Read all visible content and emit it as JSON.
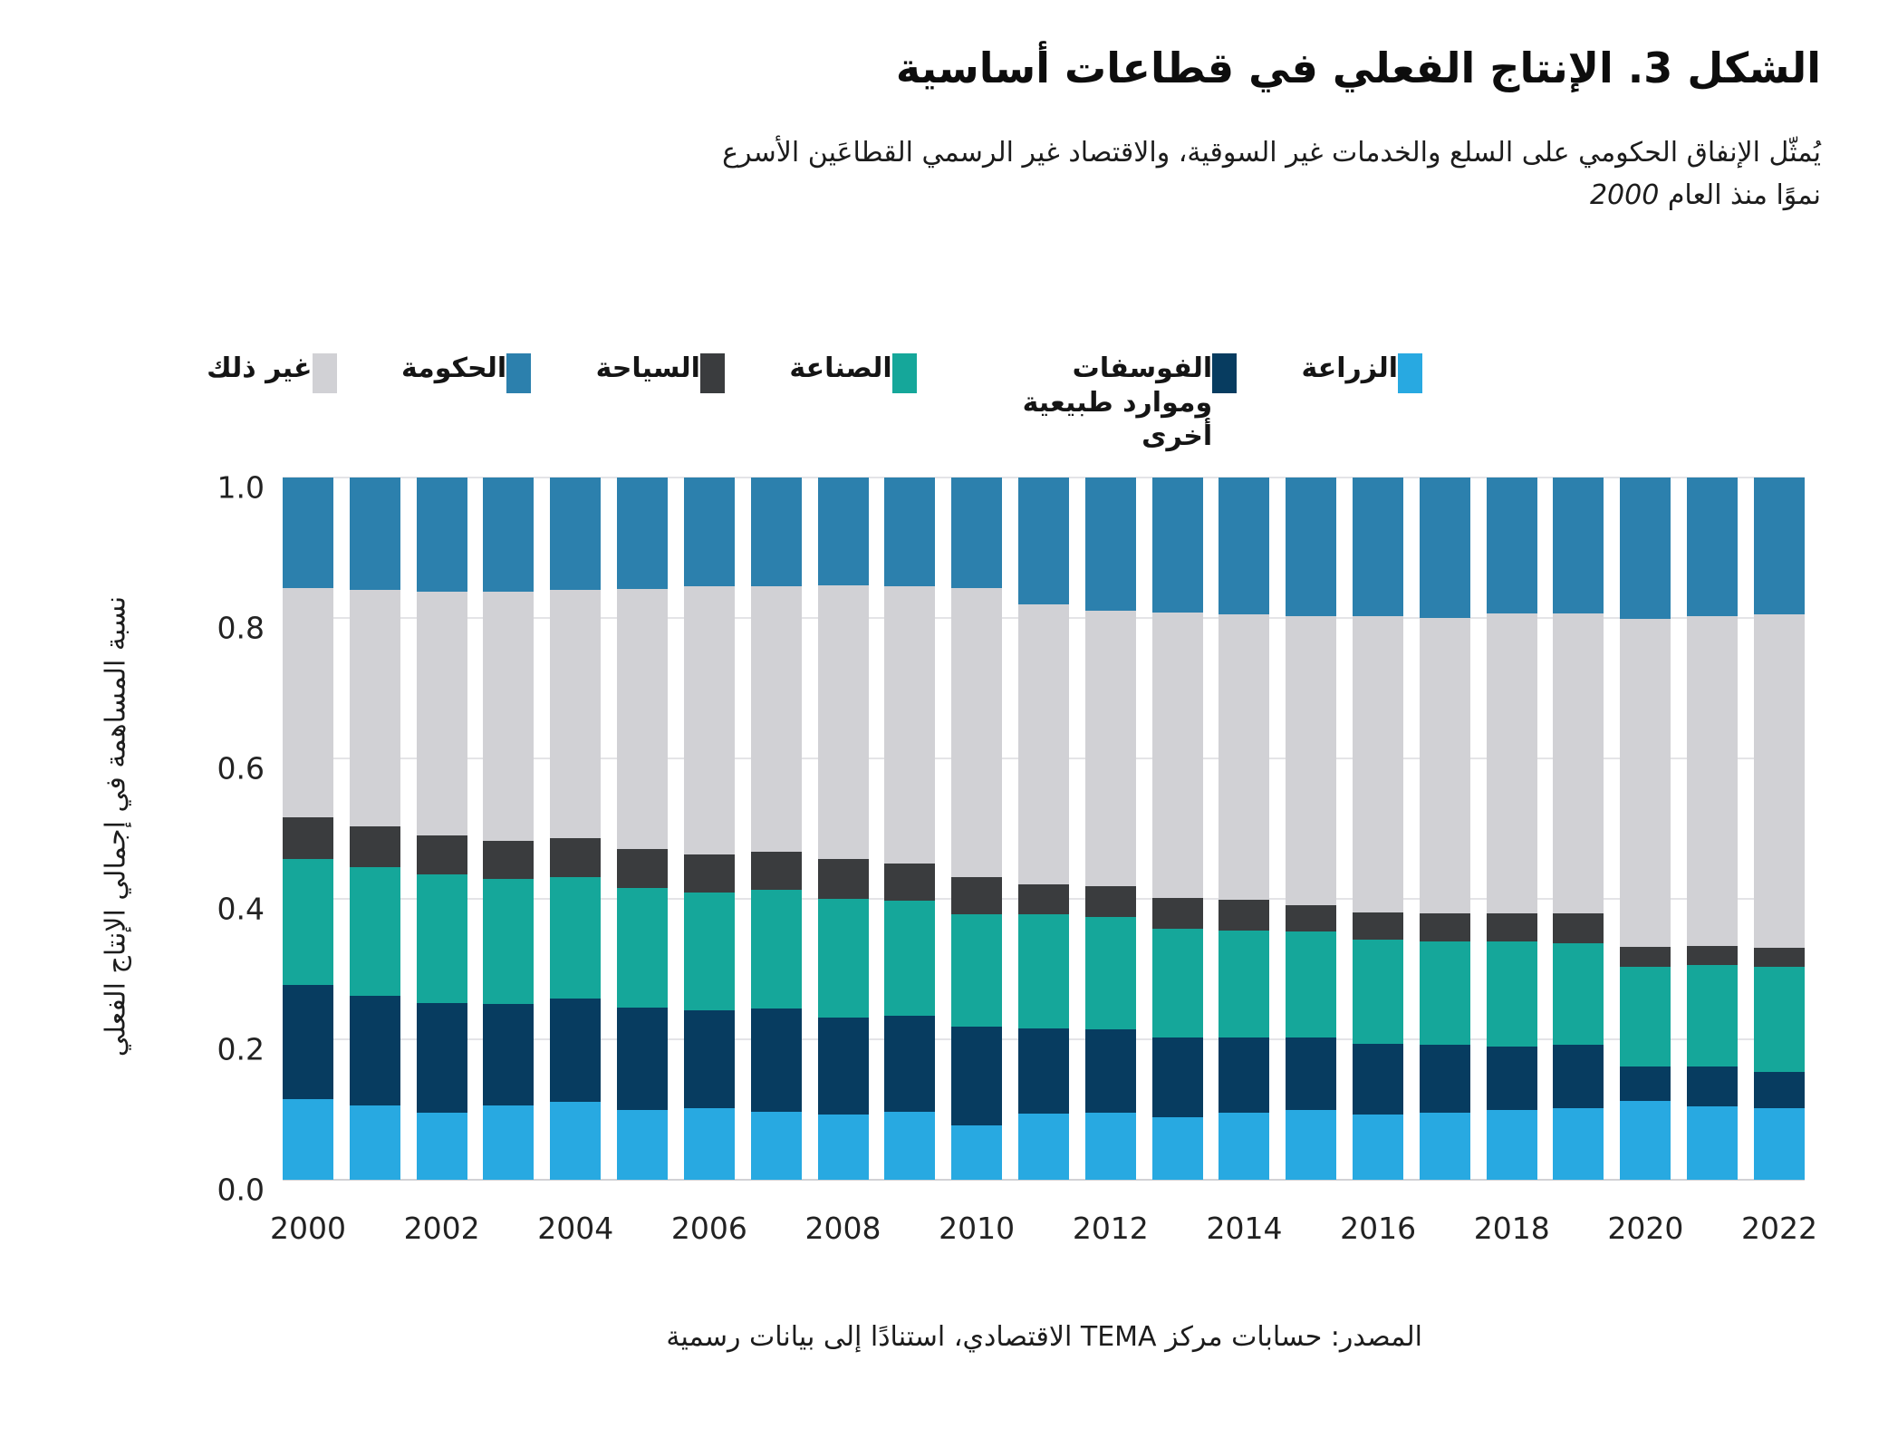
{
  "title": "الشكل 3. الإنتاج الفعلي في قطاعات أساسية",
  "subtitle": {
    "line1": "يُمثّل الإنفاق الحكومي على السلع والخدمات غير السوقية، والاقتصاد غير الرسمي القطاعَين الأسرع",
    "line2_prefix": "نموًا منذ العام",
    "year": "2000"
  },
  "source": "المصدر: حسابات مركز TEMA الاقتصادي، استنادًا إلى بيانات رسمية",
  "y_axis": {
    "label": "نسبة المساهمة في إجمالي الإنتاج الفعلي",
    "ticks": [
      "1.0",
      "0.8",
      "0.6",
      "0.4",
      "0.2",
      "0.0"
    ]
  },
  "x_axis": {
    "tick_years": [
      "2000",
      "2002",
      "2004",
      "2006",
      "2008",
      "2010",
      "2012",
      "2014",
      "2016",
      "2018",
      "2020",
      "2022"
    ]
  },
  "legend": {
    "items": [
      {
        "key": "agriculture",
        "label": "الزراعة",
        "color": "#28a9e1"
      },
      {
        "key": "phosphates",
        "label": "الفوسفات وموارد طبيعية أخرى",
        "color": "#073c60"
      },
      {
        "key": "industry",
        "label": "الصناعة",
        "color": "#15a79a"
      },
      {
        "key": "tourism",
        "label": "السياحة",
        "color": "#3a3c3e"
      },
      {
        "key": "government",
        "label": "الحكومة",
        "color": "#2c80ad"
      },
      {
        "key": "other",
        "label": "غير ذلك",
        "color": "#d1d1d5"
      }
    ]
  },
  "chart_data": {
    "type": "bar",
    "stacked": true,
    "normalized": true,
    "title": "الشكل 3. الإنتاج الفعلي في قطاعات أساسية",
    "xlabel": "",
    "ylabel": "نسبة المساهمة في إجمالي الإنتاج الفعلي",
    "ylim": [
      0,
      1
    ],
    "grid": true,
    "legend_position": "top",
    "x": [
      2000,
      2001,
      2002,
      2003,
      2004,
      2005,
      2006,
      2007,
      2008,
      2009,
      2010,
      2011,
      2012,
      2013,
      2014,
      2015,
      2016,
      2017,
      2018,
      2019,
      2020,
      2021,
      2022
    ],
    "series": [
      {
        "key": "agriculture",
        "name": "الزراعة",
        "color": "#28a9e1",
        "values": [
          0.115,
          0.106,
          0.095,
          0.106,
          0.111,
          0.099,
          0.102,
          0.097,
          0.093,
          0.097,
          0.077,
          0.094,
          0.095,
          0.089,
          0.095,
          0.099,
          0.093,
          0.095,
          0.099,
          0.102,
          0.112,
          0.105,
          0.102
        ]
      },
      {
        "key": "phosphates",
        "name": "الفوسفات وموارد طبيعية أخرى",
        "color": "#073c60",
        "values": [
          0.163,
          0.156,
          0.157,
          0.144,
          0.147,
          0.146,
          0.139,
          0.147,
          0.138,
          0.137,
          0.141,
          0.121,
          0.119,
          0.114,
          0.108,
          0.104,
          0.101,
          0.097,
          0.091,
          0.09,
          0.049,
          0.056,
          0.052
        ]
      },
      {
        "key": "industry",
        "name": "الصناعة",
        "color": "#15a79a",
        "values": [
          0.179,
          0.183,
          0.183,
          0.178,
          0.173,
          0.17,
          0.168,
          0.169,
          0.169,
          0.163,
          0.16,
          0.163,
          0.16,
          0.154,
          0.152,
          0.151,
          0.148,
          0.147,
          0.149,
          0.145,
          0.142,
          0.145,
          0.149
        ]
      },
      {
        "key": "tourism",
        "name": "السياحة",
        "color": "#3a3c3e",
        "values": [
          0.059,
          0.058,
          0.055,
          0.055,
          0.055,
          0.056,
          0.054,
          0.054,
          0.057,
          0.053,
          0.053,
          0.043,
          0.044,
          0.044,
          0.044,
          0.037,
          0.039,
          0.04,
          0.04,
          0.042,
          0.029,
          0.027,
          0.027
        ]
      },
      {
        "key": "other",
        "name": "غير ذلك",
        "color": "#d1d1d5",
        "values": [
          0.327,
          0.337,
          0.347,
          0.354,
          0.354,
          0.37,
          0.382,
          0.378,
          0.389,
          0.395,
          0.411,
          0.399,
          0.392,
          0.407,
          0.406,
          0.412,
          0.422,
          0.421,
          0.427,
          0.427,
          0.467,
          0.469,
          0.475
        ]
      },
      {
        "key": "government",
        "name": "الحكومة",
        "color": "#2c80ad",
        "values": [
          0.157,
          0.16,
          0.163,
          0.163,
          0.16,
          0.159,
          0.155,
          0.155,
          0.154,
          0.155,
          0.158,
          0.18,
          0.19,
          0.192,
          0.195,
          0.197,
          0.197,
          0.2,
          0.194,
          0.194,
          0.201,
          0.198,
          0.195
        ]
      }
    ]
  }
}
